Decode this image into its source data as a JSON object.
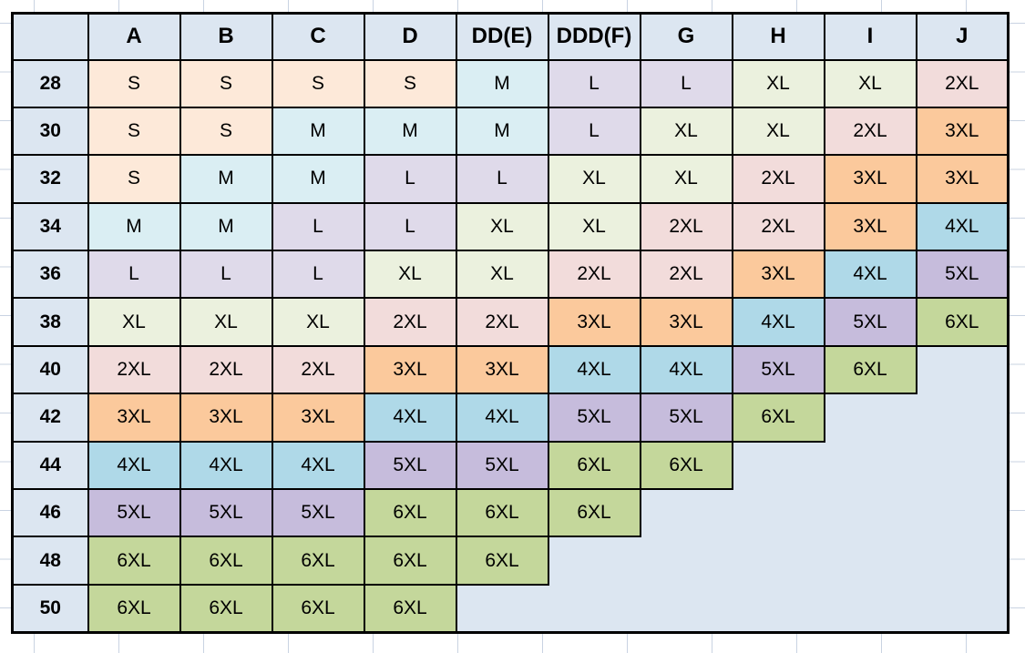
{
  "chart_data": {
    "type": "table",
    "corner_label": "",
    "columns": [
      "A",
      "B",
      "C",
      "D",
      "DD(E)",
      "DDD(F)",
      "G",
      "H",
      "I",
      "J"
    ],
    "rows": [
      {
        "label": "28",
        "cells": [
          "S",
          "S",
          "S",
          "S",
          "M",
          "L",
          "L",
          "XL",
          "XL",
          "2XL"
        ]
      },
      {
        "label": "30",
        "cells": [
          "S",
          "S",
          "M",
          "M",
          "M",
          "L",
          "XL",
          "XL",
          "2XL",
          "3XL"
        ]
      },
      {
        "label": "32",
        "cells": [
          "S",
          "M",
          "M",
          "L",
          "L",
          "XL",
          "XL",
          "2XL",
          "3XL",
          "3XL"
        ]
      },
      {
        "label": "34",
        "cells": [
          "M",
          "M",
          "L",
          "L",
          "XL",
          "XL",
          "2XL",
          "2XL",
          "3XL",
          "4XL"
        ]
      },
      {
        "label": "36",
        "cells": [
          "L",
          "L",
          "L",
          "XL",
          "XL",
          "2XL",
          "2XL",
          "3XL",
          "4XL",
          "5XL"
        ]
      },
      {
        "label": "38",
        "cells": [
          "XL",
          "XL",
          "XL",
          "2XL",
          "2XL",
          "3XL",
          "3XL",
          "4XL",
          "5XL",
          "6XL"
        ]
      },
      {
        "label": "40",
        "cells": [
          "2XL",
          "2XL",
          "2XL",
          "3XL",
          "3XL",
          "4XL",
          "4XL",
          "5XL",
          "6XL",
          ""
        ]
      },
      {
        "label": "42",
        "cells": [
          "3XL",
          "3XL",
          "3XL",
          "4XL",
          "4XL",
          "5XL",
          "5XL",
          "6XL",
          "",
          ""
        ]
      },
      {
        "label": "44",
        "cells": [
          "4XL",
          "4XL",
          "4XL",
          "5XL",
          "5XL",
          "6XL",
          "6XL",
          "",
          "",
          ""
        ]
      },
      {
        "label": "46",
        "cells": [
          "5XL",
          "5XL",
          "5XL",
          "6XL",
          "6XL",
          "6XL",
          "",
          "",
          "",
          ""
        ]
      },
      {
        "label": "48",
        "cells": [
          "6XL",
          "6XL",
          "6XL",
          "6XL",
          "6XL",
          "",
          "",
          "",
          "",
          ""
        ]
      },
      {
        "label": "50",
        "cells": [
          "6XL",
          "6XL",
          "6XL",
          "6XL",
          "",
          "",
          "",
          "",
          "",
          ""
        ]
      }
    ],
    "size_colors": {
      "S": "#FDE9D9",
      "M": "#DAEEF3",
      "L": "#DFDAEA",
      "XL": "#EBF1DE",
      "2XL": "#F2DCDB",
      "3XL": "#FBC99C",
      "4XL": "#AFD9E8",
      "5XL": "#C6BCDC",
      "6XL": "#C4D79B"
    },
    "header_bg": "#DCE6F1",
    "empty_cell_bg": "#DCE6F1",
    "layout_hints": {
      "grid": "on",
      "outer_border_color": "#000000",
      "background_gridline_color": "#c9d3e2"
    }
  }
}
